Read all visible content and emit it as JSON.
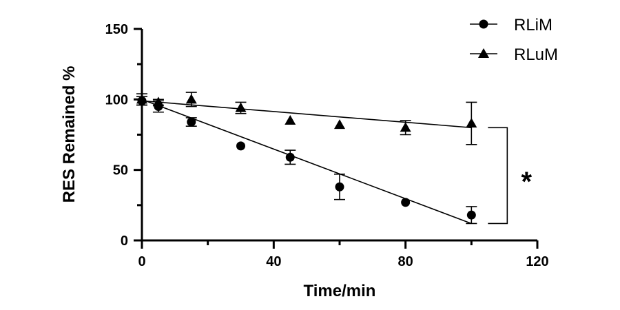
{
  "chart_data": {
    "type": "scatter",
    "xlabel": "Time/min",
    "ylabel": "RES Remained %",
    "xlim": [
      0,
      120
    ],
    "ylim": [
      0,
      150
    ],
    "x_ticks": [
      "0",
      "40",
      "80",
      "120"
    ],
    "y_ticks": [
      "0",
      "50",
      "100",
      "150"
    ],
    "grid": false,
    "legend_position": "top-right",
    "series": [
      {
        "name": "RLiM",
        "marker": "circle",
        "points": [
          {
            "x": 0,
            "y": 99,
            "err": 3
          },
          {
            "x": 5,
            "y": 95,
            "err": 4
          },
          {
            "x": 15,
            "y": 84,
            "err": 3
          },
          {
            "x": 30,
            "y": 67,
            "err": 0
          },
          {
            "x": 45,
            "y": 59,
            "err": 5
          },
          {
            "x": 60,
            "y": 38,
            "err": 9
          },
          {
            "x": 80,
            "y": 27,
            "err": 0
          },
          {
            "x": 100,
            "y": 18,
            "err": 6
          }
        ],
        "fit": {
          "x": [
            0,
            100
          ],
          "y": [
            100,
            12
          ]
        }
      },
      {
        "name": "RLuM",
        "marker": "triangle",
        "points": [
          {
            "x": 0,
            "y": 100,
            "err": 4
          },
          {
            "x": 5,
            "y": 98,
            "err": 2
          },
          {
            "x": 15,
            "y": 100,
            "err": 5
          },
          {
            "x": 30,
            "y": 94,
            "err": 4
          },
          {
            "x": 45,
            "y": 85,
            "err": 0
          },
          {
            "x": 60,
            "y": 82,
            "err": 0
          },
          {
            "x": 80,
            "y": 80,
            "err": 5
          },
          {
            "x": 100,
            "y": 83,
            "err": 15
          }
        ],
        "fit": {
          "x": [
            0,
            100
          ],
          "y": [
            99,
            80
          ]
        }
      }
    ],
    "annotations": [
      {
        "type": "significance-bracket",
        "text": "*",
        "between": [
          "RLuM",
          "RLiM"
        ],
        "x": 100
      }
    ]
  }
}
